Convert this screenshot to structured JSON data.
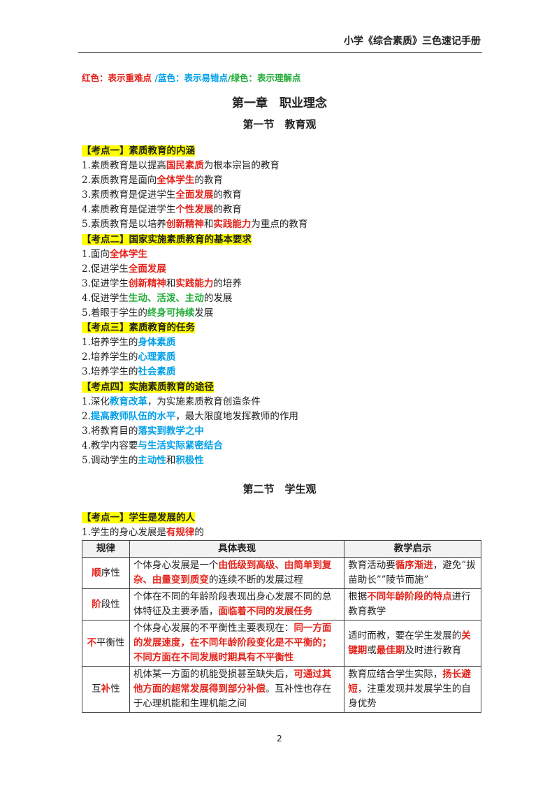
{
  "header": {
    "title": "小学《综合素质》三色速记手册"
  },
  "legend": [
    {
      "text": "红色：表示",
      "color": "#e5231b"
    },
    {
      "text": "重难点",
      "color": "#e5231b"
    },
    {
      "text": " /蓝色：表示",
      "color": "#00a0e9"
    },
    {
      "text": "易错点",
      "color": "#00a0e9"
    },
    {
      "text": "/绿色：表示",
      "color": "#22ac38"
    },
    {
      "text": "理解点",
      "color": "#22ac38"
    }
  ],
  "chapter": "第一章　职业理念",
  "section1": {
    "title": "第一节　教育观",
    "points": [
      {
        "heading": "【考点一】素质教育的内涵",
        "items": [
          [
            "1.素质教育是以提高",
            {
              "text": "国民素质",
              "color": "#e5231b"
            },
            "为根本宗旨的教育"
          ],
          [
            "2.素质教育是面向",
            {
              "text": "全体学生",
              "color": "#e5231b"
            },
            "的教育"
          ],
          [
            "3.素质教育是促进学生",
            {
              "text": "全面发展",
              "color": "#e5231b"
            },
            "的教育"
          ],
          [
            "4.素质教育是促进学生",
            {
              "text": "个性发展",
              "color": "#e5231b"
            },
            "的教育"
          ],
          [
            "5.素质教育是以培养",
            {
              "text": "创新精神",
              "color": "#e5231b"
            },
            "和",
            {
              "text": "实践能力",
              "color": "#e5231b"
            },
            "为重点的教育"
          ]
        ]
      },
      {
        "heading": "【考点二】国家实施素质教育的基本要求",
        "items": [
          [
            "1.面向",
            {
              "text": "全体学生",
              "color": "#e5231b"
            }
          ],
          [
            "2.促进学生",
            {
              "text": "全面发展",
              "color": "#e5231b"
            }
          ],
          [
            "3.促进学生",
            {
              "text": "创新精神",
              "color": "#e5231b"
            },
            "和",
            {
              "text": "实践能力",
              "color": "#e5231b"
            },
            "的培养"
          ],
          [
            "4.促进学生",
            {
              "text": "生动、活泼、主动",
              "color": "#22ac38"
            },
            "的发展"
          ],
          [
            "5.着眼于学生的",
            {
              "text": "终身可持续",
              "color": "#22ac38"
            },
            "发展"
          ]
        ]
      },
      {
        "heading": "【考点三】素质教育的任务",
        "items": [
          [
            "1.培养学生的",
            {
              "text": "身体素质",
              "color": "#00a0e9"
            }
          ],
          [
            "2.培养学生的",
            {
              "text": "心理素质",
              "color": "#00a0e9"
            }
          ],
          [
            "3.培养学生的",
            {
              "text": "社会素质",
              "color": "#00a0e9"
            }
          ]
        ]
      },
      {
        "heading": "【考点四】实施素质教育的途径",
        "items": [
          [
            "1.深化",
            {
              "text": "教育改革",
              "color": "#00a0e9"
            },
            "，为实施素质教育创造条件"
          ],
          [
            "2.",
            {
              "text": "提高教师队伍的水平",
              "color": "#00a0e9"
            },
            "，最大限度地发挥教师的作用"
          ],
          [
            "3.将教育目的",
            {
              "text": "落实到教学之中",
              "color": "#00a0e9"
            }
          ],
          [
            "4.教学内容要",
            {
              "text": "与生活实际紧密结合",
              "color": "#00a0e9"
            }
          ],
          [
            "5.调动学生的",
            {
              "text": "主动性",
              "color": "#00a0e9"
            },
            "和",
            {
              "text": "积极性",
              "color": "#00a0e9"
            }
          ]
        ]
      }
    ]
  },
  "section2": {
    "title": "第二节　学生观",
    "heading": "【考点一】学生是发展的人",
    "intro": [
      "1.学生的身心发展是",
      {
        "text": "有规律",
        "color": "#e5231b"
      },
      "的"
    ],
    "table": {
      "columns": [
        "规律",
        "具体表现",
        "教学启示"
      ],
      "rows": [
        [
          [
            {
              "text": "顺",
              "color": "#e5231b"
            },
            "序性"
          ],
          [
            "个体身心发展是一个",
            {
              "text": "由低级到高级、由简单到复杂、由量变到质变",
              "color": "#e5231b"
            },
            "的连续不断的发展过程"
          ],
          [
            "教育活动要",
            {
              "text": "循序渐进",
              "color": "#e5231b"
            },
            "，避免”拔苗助长””陵节而施”"
          ]
        ],
        [
          [
            {
              "text": "阶",
              "color": "#e5231b"
            },
            "段性"
          ],
          [
            "个体在不同的年龄阶段表现出身心发展不同的总体特征及主要矛盾，",
            {
              "text": "面临着不同的发展任务",
              "color": "#e5231b"
            }
          ],
          [
            "根据",
            {
              "text": "不同年龄阶段的特点",
              "color": "#e5231b"
            },
            "进行教育教学"
          ]
        ],
        [
          [
            {
              "text": "不",
              "color": "#e5231b"
            },
            "平衡性"
          ],
          [
            "个体身心发展的不平衡性主要表现在：",
            {
              "text": "同一方面的发展速度，在不同年龄阶段变化是不平衡的；不同方面在不同发展时期具有不平衡性",
              "color": "#e5231b"
            }
          ],
          [
            "适时而教，要在学生发展的",
            {
              "text": "关键期",
              "color": "#e5231b"
            },
            "或",
            {
              "text": "最佳期",
              "color": "#e5231b"
            },
            "及时进行教育"
          ]
        ],
        [
          [
            "互",
            {
              "text": "补",
              "color": "#e5231b"
            },
            "性"
          ],
          [
            "机体某一方面的机能受损甚至缺失后，",
            {
              "text": "可通过其他方面的超常发展得到部分补偿",
              "color": "#e5231b"
            },
            "。互补性也存在于心理机能和生理机能之间"
          ],
          [
            "教育应结合学生实际，",
            {
              "text": "扬长避短",
              "color": "#e5231b"
            },
            "，注重发现并发展学生的自身优势"
          ]
        ]
      ]
    }
  },
  "page_number": "2"
}
